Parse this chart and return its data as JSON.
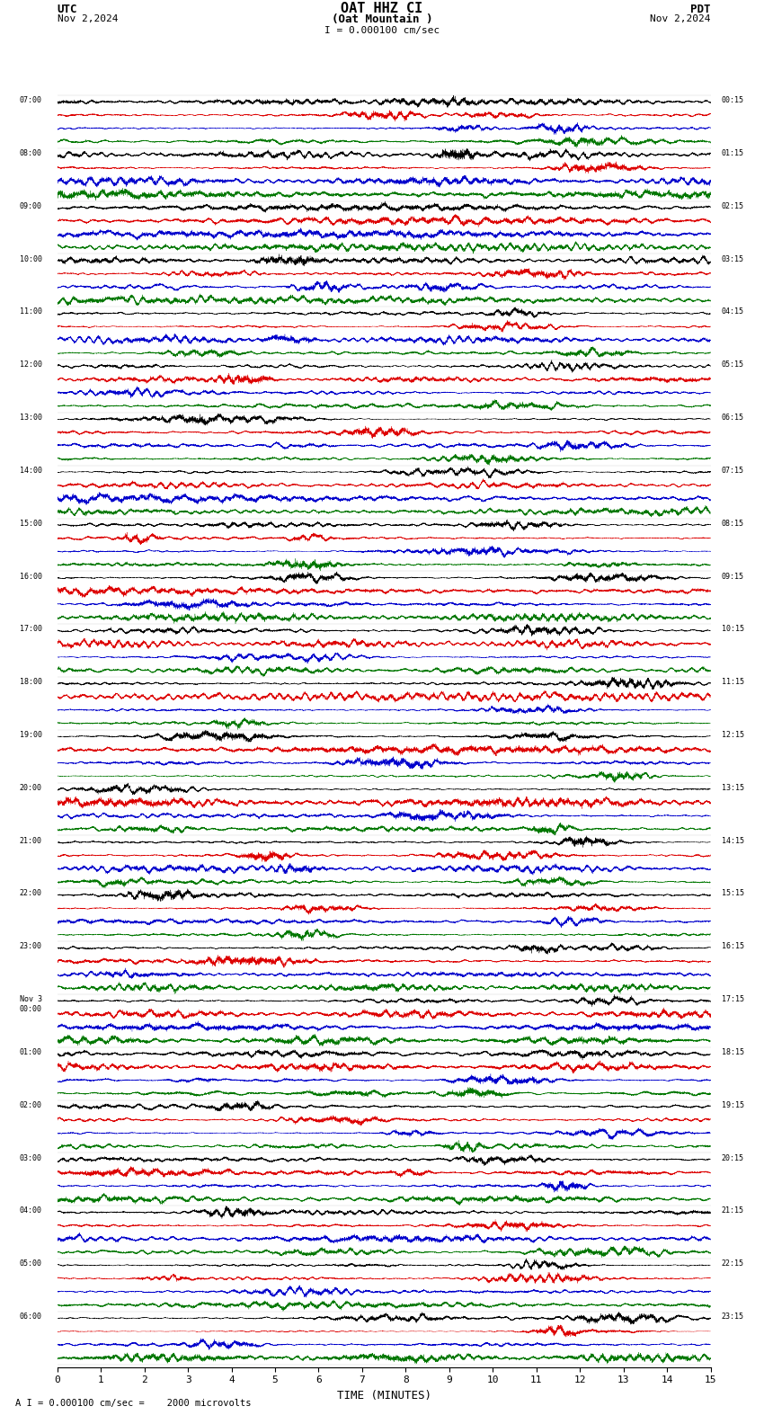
{
  "title_line1": "OAT HHZ CI",
  "title_line2": "(Oat Mountain )",
  "scale_text": "I = 0.000100 cm/sec",
  "bottom_scale_text": "A I = 0.000100 cm/sec =    2000 microvolts",
  "utc_label": "UTC",
  "pdt_label": "PDT",
  "date_left": "Nov 2,2024",
  "date_right": "Nov 2,2024",
  "xlabel": "TIME (MINUTES)",
  "xlim": [
    0,
    15
  ],
  "xticks": [
    0,
    1,
    2,
    3,
    4,
    5,
    6,
    7,
    8,
    9,
    10,
    11,
    12,
    13,
    14,
    15
  ],
  "left_times": [
    "07:00",
    "08:00",
    "09:00",
    "10:00",
    "11:00",
    "12:00",
    "13:00",
    "14:00",
    "15:00",
    "16:00",
    "17:00",
    "18:00",
    "19:00",
    "20:00",
    "21:00",
    "22:00",
    "23:00",
    "Nov 3\n00:00",
    "01:00",
    "02:00",
    "03:00",
    "04:00",
    "05:00",
    "06:00"
  ],
  "right_times": [
    "00:15",
    "01:15",
    "02:15",
    "03:15",
    "04:15",
    "05:15",
    "06:15",
    "07:15",
    "08:15",
    "09:15",
    "10:15",
    "11:15",
    "12:15",
    "13:15",
    "14:15",
    "15:15",
    "16:15",
    "17:15",
    "18:15",
    "19:15",
    "20:15",
    "21:15",
    "22:15",
    "23:15"
  ],
  "n_rows": 24,
  "sub_colors": [
    "#000000",
    "#dd0000",
    "#0000cc",
    "#007700"
  ],
  "bg_color": "#ffffff",
  "fig_width": 8.5,
  "fig_height": 15.84,
  "dpi": 100
}
